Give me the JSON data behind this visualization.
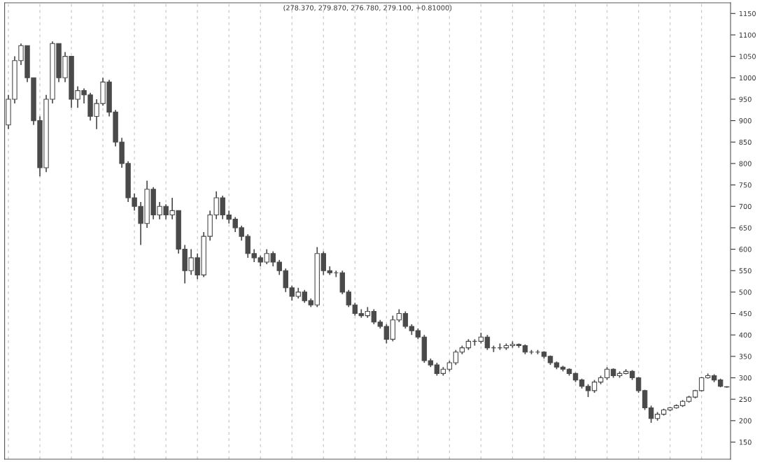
{
  "chart_data": {
    "type": "candlestick",
    "title": "(278.370, 279.870, 276.780, 279.100, +0.81000)",
    "color": "#4a4a4a",
    "categories": [
      null,
      null,
      null,
      null,
      null,
      null,
      null,
      null,
      null,
      null,
      null,
      null,
      null,
      null,
      null,
      null,
      null,
      null,
      null,
      null,
      null,
      null,
      null,
      null,
      null,
      null,
      null,
      null,
      null,
      null,
      null,
      null,
      null,
      null,
      null,
      null,
      null,
      null,
      null,
      null,
      null,
      null,
      null,
      null,
      null,
      null,
      null,
      null,
      null,
      null,
      null,
      null,
      null,
      null,
      null,
      null,
      null,
      null,
      null,
      null,
      null,
      null,
      null,
      null,
      null,
      null,
      null,
      null,
      null,
      null,
      null,
      null,
      null,
      null,
      null,
      null,
      null,
      null,
      null,
      null,
      null,
      null,
      null,
      null,
      null,
      null,
      null,
      null,
      null,
      null,
      null,
      null,
      null,
      null,
      null,
      null,
      null,
      null,
      null,
      null,
      null,
      null,
      null,
      null,
      null,
      null,
      null,
      null,
      null,
      null,
      null,
      null,
      null,
      null,
      null
    ],
    "ohlc": [
      [
        890,
        960,
        880,
        950
      ],
      [
        950,
        1050,
        940,
        1040
      ],
      [
        1040,
        1080,
        1030,
        1075
      ],
      [
        1075,
        1075,
        990,
        1000
      ],
      [
        1000,
        1000,
        890,
        900
      ],
      [
        900,
        910,
        770,
        790
      ],
      [
        790,
        960,
        780,
        950
      ],
      [
        950,
        1085,
        940,
        1080
      ],
      [
        1080,
        1080,
        990,
        1000
      ],
      [
        1000,
        1060,
        990,
        1050
      ],
      [
        1050,
        1050,
        930,
        950
      ],
      [
        950,
        980,
        930,
        970
      ],
      [
        970,
        975,
        940,
        960
      ],
      [
        960,
        965,
        900,
        910
      ],
      [
        910,
        950,
        880,
        940
      ],
      [
        940,
        1000,
        935,
        990
      ],
      [
        990,
        995,
        910,
        920
      ],
      [
        920,
        925,
        840,
        850
      ],
      [
        850,
        860,
        790,
        800
      ],
      [
        800,
        805,
        710,
        720
      ],
      [
        720,
        730,
        690,
        700
      ],
      [
        700,
        710,
        610,
        660
      ],
      [
        660,
        760,
        650,
        740
      ],
      [
        740,
        745,
        670,
        680
      ],
      [
        680,
        710,
        670,
        700
      ],
      [
        700,
        705,
        670,
        680
      ],
      [
        680,
        720,
        670,
        690
      ],
      [
        690,
        690,
        590,
        600
      ],
      [
        600,
        610,
        520,
        550
      ],
      [
        550,
        600,
        540,
        580
      ],
      [
        580,
        590,
        530,
        540
      ],
      [
        540,
        640,
        535,
        630
      ],
      [
        630,
        690,
        620,
        680
      ],
      [
        680,
        735,
        670,
        720
      ],
      [
        720,
        725,
        670,
        680
      ],
      [
        680,
        690,
        660,
        670
      ],
      [
        670,
        675,
        640,
        650
      ],
      [
        650,
        655,
        620,
        630
      ],
      [
        630,
        635,
        580,
        590
      ],
      [
        590,
        600,
        570,
        580
      ],
      [
        580,
        585,
        560,
        570
      ],
      [
        570,
        600,
        565,
        590
      ],
      [
        590,
        595,
        560,
        570
      ],
      [
        570,
        575,
        540,
        550
      ],
      [
        550,
        555,
        500,
        510
      ],
      [
        510,
        515,
        480,
        490
      ],
      [
        490,
        510,
        485,
        500
      ],
      [
        500,
        505,
        475,
        480
      ],
      [
        480,
        485,
        465,
        470
      ],
      [
        470,
        605,
        465,
        590
      ],
      [
        590,
        595,
        540,
        550
      ],
      [
        550,
        560,
        540,
        545
      ],
      [
        545,
        550,
        535,
        545
      ],
      [
        545,
        550,
        495,
        500
      ],
      [
        500,
        505,
        465,
        470
      ],
      [
        470,
        475,
        445,
        450
      ],
      [
        450,
        460,
        440,
        445
      ],
      [
        445,
        465,
        440,
        455
      ],
      [
        455,
        460,
        425,
        430
      ],
      [
        430,
        435,
        415,
        420
      ],
      [
        420,
        425,
        380,
        390
      ],
      [
        390,
        445,
        385,
        435
      ],
      [
        435,
        460,
        430,
        450
      ],
      [
        450,
        455,
        415,
        420
      ],
      [
        420,
        425,
        400,
        410
      ],
      [
        410,
        415,
        390,
        395
      ],
      [
        395,
        400,
        335,
        340
      ],
      [
        340,
        345,
        325,
        330
      ],
      [
        330,
        335,
        305,
        310
      ],
      [
        310,
        325,
        305,
        320
      ],
      [
        320,
        340,
        315,
        335
      ],
      [
        335,
        365,
        330,
        360
      ],
      [
        360,
        375,
        355,
        370
      ],
      [
        370,
        390,
        365,
        385
      ],
      [
        385,
        390,
        375,
        385
      ],
      [
        385,
        405,
        380,
        395
      ],
      [
        395,
        400,
        365,
        370
      ],
      [
        370,
        375,
        360,
        370
      ],
      [
        370,
        380,
        365,
        370
      ],
      [
        370,
        380,
        365,
        375
      ],
      [
        375,
        385,
        370,
        378
      ],
      [
        378,
        380,
        370,
        375
      ],
      [
        375,
        378,
        355,
        360
      ],
      [
        360,
        365,
        355,
        360
      ],
      [
        360,
        365,
        355,
        360
      ],
      [
        360,
        362,
        345,
        350
      ],
      [
        350,
        352,
        330,
        335
      ],
      [
        335,
        338,
        320,
        325
      ],
      [
        325,
        328,
        315,
        320
      ],
      [
        320,
        322,
        305,
        310
      ],
      [
        310,
        312,
        290,
        295
      ],
      [
        295,
        298,
        275,
        280
      ],
      [
        280,
        285,
        255,
        270
      ],
      [
        270,
        295,
        265,
        290
      ],
      [
        290,
        305,
        285,
        300
      ],
      [
        300,
        325,
        295,
        320
      ],
      [
        320,
        322,
        300,
        305
      ],
      [
        305,
        315,
        300,
        310
      ],
      [
        310,
        320,
        308,
        315
      ],
      [
        315,
        318,
        295,
        300
      ],
      [
        300,
        302,
        265,
        270
      ],
      [
        270,
        272,
        225,
        230
      ],
      [
        230,
        235,
        195,
        205
      ],
      [
        205,
        220,
        200,
        215
      ],
      [
        215,
        228,
        212,
        225
      ],
      [
        225,
        232,
        222,
        230
      ],
      [
        230,
        238,
        228,
        235
      ],
      [
        235,
        248,
        232,
        245
      ],
      [
        245,
        258,
        242,
        255
      ],
      [
        255,
        272,
        252,
        270
      ],
      [
        270,
        302,
        268,
        300
      ],
      [
        300,
        310,
        298,
        305
      ],
      [
        305,
        308,
        290,
        295
      ],
      [
        295,
        298,
        278,
        280
      ],
      [
        278.37,
        279.87,
        276.78,
        279.1
      ]
    ],
    "grid": "x",
    "ylim": [
      110,
      1175
    ],
    "yticks": [
      150,
      200,
      250,
      300,
      350,
      400,
      450,
      500,
      550,
      600,
      650,
      700,
      750,
      800,
      850,
      900,
      950,
      1000,
      1050,
      1100,
      1150
    ]
  }
}
